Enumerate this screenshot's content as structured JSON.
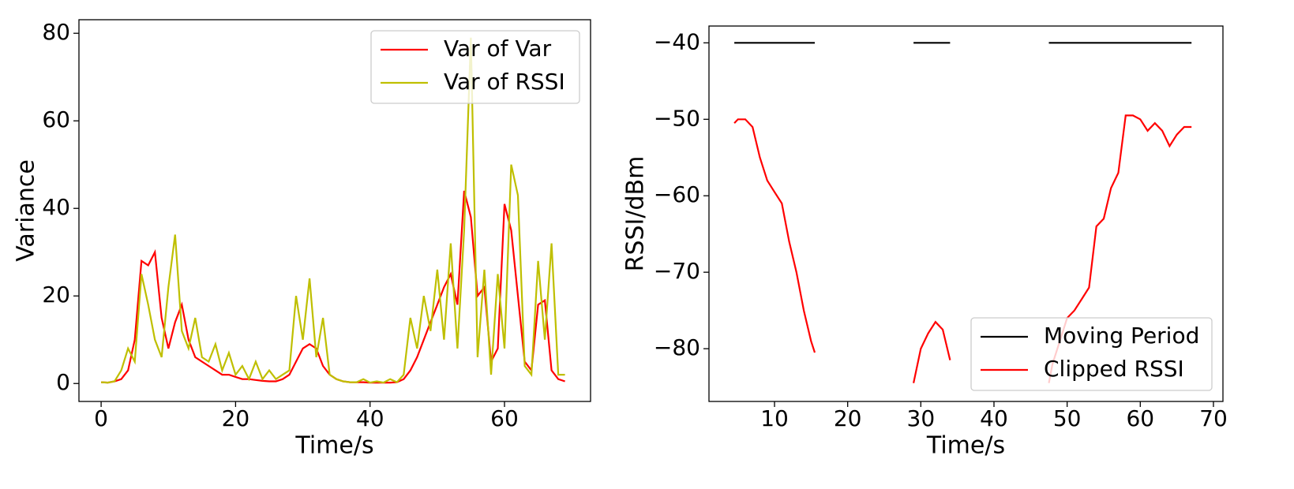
{
  "chart_data": [
    {
      "type": "line",
      "xlabel": "Time/s",
      "ylabel": "Variance",
      "x": [
        0,
        1,
        2,
        3,
        4,
        5,
        6,
        7,
        8,
        9,
        10,
        11,
        12,
        13,
        14,
        15,
        16,
        17,
        18,
        19,
        20,
        21,
        22,
        23,
        24,
        25,
        26,
        27,
        28,
        29,
        30,
        31,
        32,
        33,
        34,
        35,
        36,
        37,
        38,
        39,
        40,
        41,
        42,
        43,
        44,
        45,
        46,
        47,
        48,
        49,
        50,
        51,
        52,
        53,
        54,
        55,
        56,
        57,
        58,
        59,
        60,
        61,
        62,
        63,
        64,
        65,
        66,
        67,
        68,
        69
      ],
      "series": [
        {
          "name": "Var of Var",
          "color": "#ff0000",
          "values": [
            0.3,
            0.2,
            0.5,
            1,
            3,
            10,
            28,
            27,
            30,
            15,
            8,
            14,
            18,
            10,
            6,
            5,
            4,
            3,
            2,
            2,
            1.5,
            1,
            1,
            0.8,
            0.6,
            0.5,
            0.5,
            1,
            2,
            5,
            8,
            9,
            8,
            4,
            2,
            1,
            0.5,
            0.3,
            0.3,
            0.3,
            0.2,
            0.2,
            0.2,
            0.2,
            0.3,
            1,
            3,
            6,
            10,
            14,
            18,
            22,
            25,
            18,
            44,
            38,
            20,
            22,
            5,
            8,
            41,
            35,
            20,
            5,
            3,
            18,
            19,
            3,
            1,
            0.5
          ]
        },
        {
          "name": "Var of RSSI",
          "color": "#bfbf00",
          "values": [
            0.3,
            0.2,
            0.5,
            3,
            8,
            5,
            25,
            18,
            10,
            6,
            22,
            34,
            12,
            8,
            15,
            6,
            5,
            9,
            3,
            7,
            2,
            4,
            1,
            5,
            1,
            3,
            1,
            2,
            3,
            20,
            10,
            24,
            6,
            15,
            2,
            1,
            0.5,
            0.3,
            0.3,
            1,
            0.2,
            0.5,
            0.2,
            1,
            0.3,
            2,
            15,
            8,
            20,
            12,
            26,
            10,
            32,
            8,
            35,
            79,
            6,
            26,
            2,
            25,
            8,
            50,
            43,
            4,
            2,
            28,
            10,
            32,
            2,
            2
          ]
        }
      ],
      "xlim": [
        -3.3,
        72.8
      ],
      "ylim": [
        -4.1,
        83.1
      ],
      "xticks": [
        0,
        20,
        40,
        60
      ],
      "yticks": [
        0,
        20,
        40,
        60,
        80
      ],
      "legend": "upper right"
    },
    {
      "type": "line",
      "xlabel": "Time/s",
      "ylabel": "RSSI/dBm",
      "x": [
        4.5,
        5,
        6,
        7,
        8,
        9,
        10,
        11,
        12,
        13,
        14,
        15,
        15.5,
        22,
        29,
        30,
        31,
        32,
        33,
        34,
        40,
        47.5,
        48,
        49,
        50,
        51,
        52,
        53,
        54,
        55,
        56,
        57,
        58,
        59,
        60,
        61,
        62,
        63,
        64,
        65,
        66,
        67
      ],
      "series": [
        {
          "name": "Moving Period",
          "color": "#000000",
          "values": [
            -40,
            -40,
            -40,
            -40,
            -40,
            -40,
            -40,
            -40,
            -40,
            -40,
            -40,
            -40,
            -40,
            null,
            -40,
            -40,
            -40,
            -40,
            -40,
            -40,
            null,
            -40,
            -40,
            -40,
            -40,
            -40,
            -40,
            -40,
            -40,
            -40,
            -40,
            -40,
            -40,
            -40,
            -40,
            -40,
            -40,
            -40,
            -40,
            -40,
            -40,
            -40
          ]
        },
        {
          "name": "Clipped RSSI",
          "color": "#ff0000",
          "values": [
            -50.5,
            -50,
            -50,
            -51,
            -55,
            -58,
            -59.5,
            -61,
            -66,
            -70,
            -75,
            -79,
            -80.5,
            null,
            -84.5,
            -80,
            -78,
            -76.5,
            -77.5,
            -81.5,
            null,
            -84.5,
            -82,
            -79,
            -76,
            -75,
            -73.5,
            -72,
            -64,
            -63,
            -59,
            -57,
            -49.5,
            -49.5,
            -50,
            -51.5,
            -50.5,
            -51.5,
            -53.5,
            -52,
            -51,
            -51
          ]
        }
      ],
      "xlim": [
        1.04,
        71.3
      ],
      "ylim": [
        -86.9,
        -37.8
      ],
      "xticks": [
        10,
        20,
        30,
        40,
        50,
        60,
        70
      ],
      "yticks": [
        {
          "value": -40,
          "label": "−40"
        },
        {
          "value": -50,
          "label": "−50"
        },
        {
          "value": -60,
          "label": "−60"
        },
        {
          "value": -70,
          "label": "−70"
        },
        {
          "value": -80,
          "label": "−80"
        }
      ],
      "legend": "lower right"
    }
  ]
}
